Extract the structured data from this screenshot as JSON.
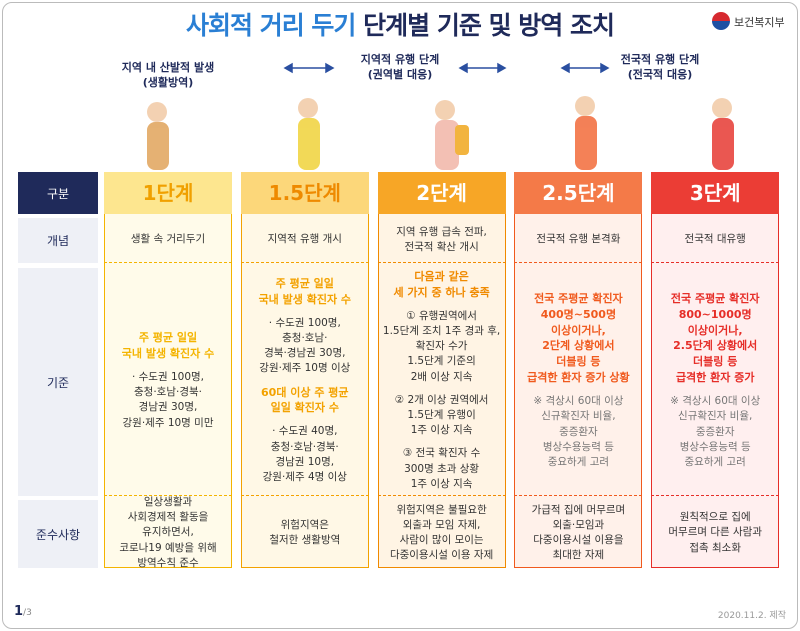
{
  "header": {
    "title": [
      "사회적 거리 두기",
      "단계별 기준 및 방역 조치"
    ],
    "logo": "보건복지부"
  },
  "top_labels": [
    [
      "지역 내 산발적 발생",
      "(생활방역)"
    ],
    [
      "지역적 유행 단계",
      "(권역별 대응)"
    ],
    [
      "전국적 유행 단계",
      "(전국적 대응)"
    ]
  ],
  "row_labels": [
    "구분",
    "개념",
    "기준",
    "준수사항"
  ],
  "columns": [
    {
      "level": "1단계",
      "color": "#f4b400",
      "header_bg": "#fde68f",
      "body_bg": "#fffbea",
      "header_text": "#f0a000",
      "concept": [
        "생활 속 거리두기"
      ],
      "criteria": [
        {
          "emphasis": true,
          "lines": [
            "주 평균 일일",
            "국내 발생 확진자 수"
          ]
        },
        {
          "emphasis": false,
          "lines": [
            "· 수도권 100명,",
            "충청·호남·경북·",
            "경남권 30명,",
            "강원·제주 10명 미만"
          ]
        }
      ],
      "guidelines": [
        "일상생활과",
        "사회경제적 활동을",
        "유지하면서,",
        "코로나19 예방을 위해",
        "방역수칙 준수"
      ]
    },
    {
      "level": "1.5단계",
      "color": "#f3a200",
      "header_bg": "#fcd77a",
      "body_bg": "#fff8e6",
      "header_text": "#ee8a00",
      "concept": [
        "지역적 유행 개시"
      ],
      "criteria": [
        {
          "emphasis": true,
          "lines": [
            "주 평균 일일",
            "국내 발생 확진자 수"
          ]
        },
        {
          "emphasis": false,
          "lines": [
            "· 수도권 100명,",
            "충청·호남·",
            "경북·경남권 30명,",
            "강원·제주 10명 이상"
          ]
        },
        {
          "emphasis": true,
          "lines": [
            "60대 이상 주 평균",
            "일일 확진자 수"
          ]
        },
        {
          "emphasis": false,
          "lines": [
            "· 수도권 40명,",
            "충청·호남·경북·",
            "경남권 10명,",
            "강원·제주 4명 이상"
          ]
        }
      ],
      "guidelines": [
        "위험지역은",
        "철저한 생활방역"
      ]
    },
    {
      "level": "2단계",
      "color": "#f08a00",
      "header_bg": "#f7a626",
      "body_bg": "#fff4e4",
      "header_text": "#ffffff",
      "concept": [
        "지역 유행 급속 전파,",
        "전국적 확산 개시"
      ],
      "criteria": [
        {
          "emphasis": true,
          "lines": [
            "다음과 같은",
            "세 가지 중 하나 충족"
          ]
        },
        {
          "emphasis": false,
          "lines": [
            "① 유행권역에서",
            "1.5단계 조치 1주 경과 후,",
            "확진자 수가",
            "1.5단계 기준의",
            "2배 이상 지속"
          ]
        },
        {
          "emphasis": false,
          "lines": [
            "② 2개 이상 권역에서",
            "1.5단계 유행이",
            "1주 이상 지속"
          ]
        },
        {
          "emphasis": false,
          "lines": [
            "③ 전국 확진자 수",
            "300명 초과 상황",
            "1주 이상 지속"
          ]
        }
      ],
      "guidelines": [
        "위험지역은 불필요한",
        "외출과 모임 자제,",
        "사람이 많이 모이는",
        "다중이용시설 이용 자제"
      ]
    },
    {
      "level": "2.5단계",
      "color": "#f05a1e",
      "header_bg": "#f47a48",
      "body_bg": "#fff1ea",
      "header_text": "#ffffff",
      "concept": [
        "전국적 유행 본격화"
      ],
      "criteria": [
        {
          "emphasis": true,
          "lines": [
            "전국 주평균 확진자",
            "400명~500명",
            "이상이거나,",
            "2단계 상황에서",
            "더블링 등",
            "급격한 환자 증가 상황"
          ]
        },
        {
          "emphasis": false,
          "lines": [
            "※ 격상시 60대 이상",
            "신규확진자 비율,",
            "중증환자",
            "병상수용능력 등",
            "중요하게 고려"
          ]
        }
      ],
      "guidelines": [
        "가급적 집에 머무르며",
        "외출·모임과",
        "다중이용시설 이용을",
        "최대한 자제"
      ]
    },
    {
      "level": "3단계",
      "color": "#e62e28",
      "header_bg": "#eb3d35",
      "body_bg": "#ffefef",
      "header_text": "#ffffff",
      "concept": [
        "전국적 대유행"
      ],
      "criteria": [
        {
          "emphasis": true,
          "lines": [
            "전국 주평균 확진자",
            "800~1000명",
            "이상이거나,",
            "2.5단계 상황에서",
            "더블링 등",
            "급격한 환자 증가"
          ]
        },
        {
          "emphasis": false,
          "lines": [
            "※ 격상시 60대 이상",
            "신규확진자 비율,",
            "중증환자",
            "병상수용능력 등",
            "중요하게 고려"
          ]
        }
      ],
      "guidelines": [
        "원칙적으로 집에",
        "머무르며 다른 사람과",
        "접촉 최소화"
      ]
    }
  ],
  "footer": {
    "page": "1",
    "total": "/3",
    "date": "2020.11.2. 제작"
  }
}
